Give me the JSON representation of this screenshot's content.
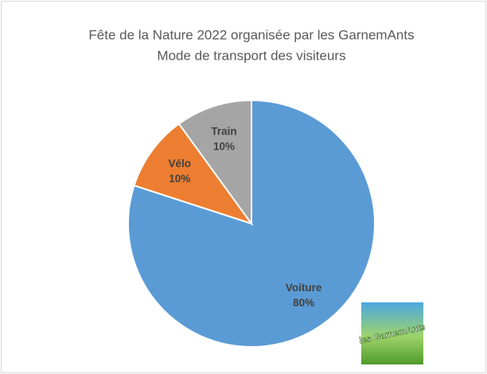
{
  "chart_data": {
    "type": "pie",
    "title": [
      "Fête de la Nature 2022 organisée par les GarnemAnts",
      "Mode de transport des visiteurs"
    ],
    "categories": [
      "Voiture",
      "Vélo",
      "Train"
    ],
    "values": [
      80,
      10,
      10
    ],
    "value_labels": [
      "80%",
      "10%",
      "10%"
    ],
    "colors": [
      "#5b9bd5",
      "#ed7d31",
      "#a5a5a5"
    ],
    "logo": "les GarnemAnts"
  }
}
